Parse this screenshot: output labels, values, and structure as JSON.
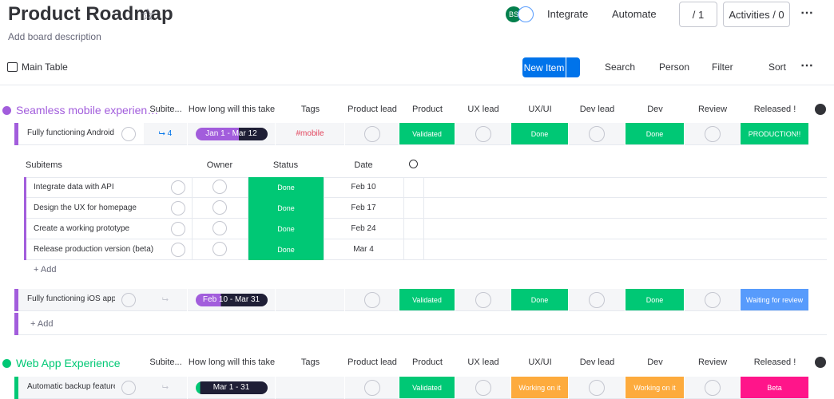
{
  "header": {
    "title": "Product Roadmap",
    "description": "Add board description",
    "avatar": "BS",
    "integrate": "Integrate",
    "automate": "Automate",
    "members": "/ 1",
    "activities": "Activities / 0"
  },
  "toolbar": {
    "view": "Main Table",
    "new_item": "New Item",
    "search": "Search",
    "person": "Person",
    "filter": "Filter",
    "sort": "Sort"
  },
  "groups": [
    {
      "name": "Seamless mobile experien…",
      "color": "#a25ddc",
      "columns": [
        "Subite...",
        "How long will this take",
        "Tags",
        "Product lead",
        "Product",
        "UX lead",
        "UX/UI",
        "Dev lead",
        "Dev",
        "Review",
        "Released !"
      ],
      "items": [
        {
          "name": "Fully functioning Android ...",
          "subitem_count": "4",
          "timeline": "Jan 1 - Mar 12",
          "tags": "#mobile",
          "product": {
            "label": "Validated",
            "color": "#00c875"
          },
          "uxui": {
            "label": "Done",
            "color": "#00c875"
          },
          "dev": {
            "label": "Done",
            "color": "#00c875"
          },
          "released": {
            "label": "PRODUCTION!!",
            "color": "#00c875"
          },
          "subitems": {
            "columns": [
              "Subitems",
              "Owner",
              "Status",
              "Date"
            ],
            "rows": [
              {
                "name": "Integrate data with API",
                "status": "Done",
                "date": "Feb 10"
              },
              {
                "name": "Design the UX for homepage",
                "status": "Done",
                "date": "Feb 17"
              },
              {
                "name": "Create a working prototype",
                "status": "Done",
                "date": "Feb 24"
              },
              {
                "name": "Release production version (beta)",
                "status": "Done",
                "date": "Mar 4"
              }
            ],
            "add": "+ Add"
          }
        },
        {
          "name": "Fully functioning iOS app",
          "timeline": "Feb 10 - Mar 31",
          "product": {
            "label": "Validated",
            "color": "#00c875"
          },
          "uxui": {
            "label": "Done",
            "color": "#00c875"
          },
          "dev": {
            "label": "Done",
            "color": "#00c875"
          },
          "released": {
            "label": "Waiting for review",
            "color": "#579bfc"
          }
        }
      ],
      "add": "+ Add"
    },
    {
      "name": "Web App Experience",
      "color": "#00c875",
      "columns": [
        "Subite...",
        "How long will this take",
        "Tags",
        "Product lead",
        "Product",
        "UX lead",
        "UX/UI",
        "Dev lead",
        "Dev",
        "Review",
        "Released !"
      ],
      "items": [
        {
          "name": "Automatic backup feature",
          "timeline": "Mar 1 - 31",
          "product": {
            "label": "Validated",
            "color": "#00c875"
          },
          "uxui": {
            "label": "Working on it",
            "color": "#fdab3d"
          },
          "dev": {
            "label": "Working on it",
            "color": "#fdab3d"
          },
          "released": {
            "label": "Beta",
            "color": "#ff158a"
          }
        }
      ]
    }
  ]
}
